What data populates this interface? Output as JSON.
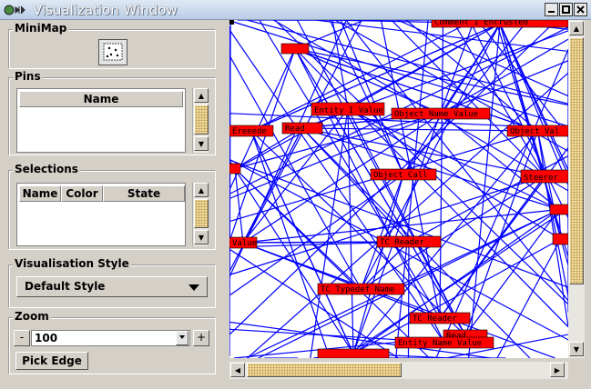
{
  "window": {
    "title": "Visualization Window",
    "icon": "app-pin-icon",
    "controls": [
      "minimize-icon",
      "maximize-icon",
      "close-icon"
    ]
  },
  "minimap": {
    "title": "MiniMap",
    "icon": "minimap-icon"
  },
  "pins": {
    "title": "Pins",
    "columns": [
      "Name"
    ],
    "rows": []
  },
  "selections": {
    "title": "Selections",
    "columns": [
      "Name",
      "Color",
      "State"
    ],
    "rows": []
  },
  "style": {
    "title": "Visualisation Style",
    "selected": "Default Style"
  },
  "zoom": {
    "title": "Zoom",
    "minus_label": "-",
    "value": "100",
    "plus_label": "+",
    "pick_edge_label": "Pick Edge"
  },
  "graph": {
    "edge_color": "#0000ff",
    "node_color": "#ff0000",
    "nodes": [
      {
        "label": "Comment I Encrusted"
      },
      {
        "label": "Entity I Value"
      },
      {
        "label": "Object Name Value"
      },
      {
        "label": "Ereeede"
      },
      {
        "label": "Read"
      },
      {
        "label": "Object Val"
      },
      {
        "label": "Object Call"
      },
      {
        "label": "Steerer"
      },
      {
        "label": "Value"
      },
      {
        "label": "TC Reader"
      },
      {
        "label": "TC Typedef Name"
      },
      {
        "label": "TC Reader"
      },
      {
        "label": "Read"
      },
      {
        "label": "Entity Name Value"
      },
      {
        "label": ""
      },
      {
        "label": ""
      },
      {
        "label": ""
      },
      {
        "label": ""
      },
      {
        "label": ""
      }
    ]
  }
}
